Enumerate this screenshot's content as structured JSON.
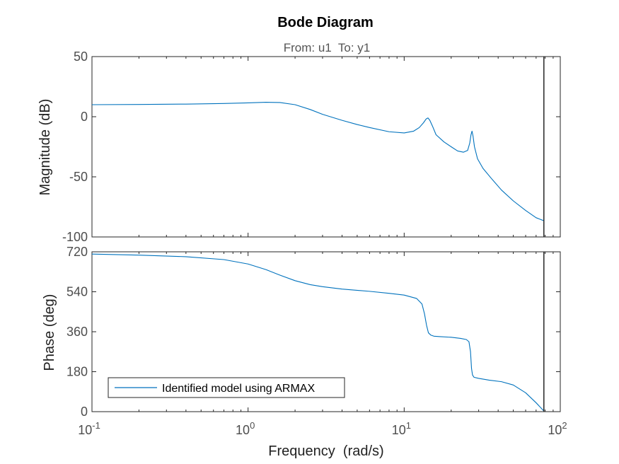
{
  "chart_data": {
    "type": "line",
    "title": "Bode Diagram",
    "subtitle": "From: u1  To: y1",
    "xlabel": "Frequency  (rad/s)",
    "xscale": "log",
    "xlim": [
      0.1,
      100
    ],
    "x_ticks": [
      {
        "value": 0.1,
        "base": "10",
        "exp": "-1"
      },
      {
        "value": 1,
        "base": "10",
        "exp": "0"
      },
      {
        "value": 10,
        "base": "10",
        "exp": "1"
      },
      {
        "value": 100,
        "base": "10",
        "exp": "2"
      }
    ],
    "nyquist_frequency": 78.5,
    "legend": {
      "label": "Identified model using ARMAX",
      "placement": "bottom-left"
    },
    "color": "#0072bd",
    "panels": [
      {
        "name": "magnitude",
        "ylabel": "Magnitude (dB)",
        "ylim": [
          -100,
          50
        ],
        "yticks": [
          50,
          0,
          -50,
          -100
        ],
        "tick_labels": [
          "50",
          "0",
          "-50",
          "-100"
        ],
        "series": [
          {
            "x": [
              0.1,
              0.2,
              0.4,
              0.7,
              1.0,
              1.3,
              1.6,
              2.0,
              2.5,
              3.0,
              4.0,
              5.0,
              6.0,
              8.0,
              10.0,
              11.5,
              12.5,
              13.3,
              13.8,
              14.2,
              14.6,
              15.2,
              16.0,
              18.0,
              20.0,
              22.0,
              24.0,
              25.5,
              26.3,
              26.8,
              27.2,
              27.6,
              28.2,
              29.5,
              32.0,
              36.0,
              42.0,
              50.0,
              60.0,
              70.0,
              78.5
            ],
            "y": [
              10,
              10.2,
              10.5,
              11,
              11.5,
              12,
              11.8,
              10,
              6,
              2,
              -3,
              -6.5,
              -9,
              -12.5,
              -13.5,
              -12,
              -9,
              -5,
              -2,
              -1,
              -3,
              -8,
              -15,
              -21,
              -25,
              -28.5,
              -29.5,
              -28,
              -22,
              -15,
              -12,
              -16,
              -25,
              -35,
              -43,
              -51,
              -61,
              -70,
              -78,
              -84,
              -86.5
            ]
          }
        ]
      },
      {
        "name": "phase",
        "ylabel": "Phase (deg)",
        "ylim": [
          0,
          720
        ],
        "yticks": [
          720,
          540,
          360,
          180,
          0
        ],
        "tick_labels": [
          "720",
          "540",
          "360",
          "180",
          "0"
        ],
        "series": [
          {
            "x": [
              0.1,
              0.2,
              0.4,
              0.7,
              1.0,
              1.3,
              1.6,
              2.0,
              2.5,
              3.0,
              4.0,
              6.0,
              8.0,
              10.0,
              12.0,
              13.0,
              13.5,
              13.9,
              14.3,
              14.8,
              15.5,
              17.0,
              20.0,
              23.0,
              25.0,
              26.0,
              26.6,
              27.0,
              27.4,
              28.0,
              30.0,
              35.0,
              42.0,
              50.0,
              60.0,
              70.0,
              78.5
            ],
            "y": [
              710,
              705,
              698,
              685,
              665,
              640,
              615,
              590,
              572,
              563,
              552,
              542,
              533,
              525,
              510,
              485,
              440,
              390,
              355,
              345,
              340,
              338,
              335,
              330,
              325,
              315,
              270,
              195,
              165,
              155,
              150,
              142,
              135,
              120,
              85,
              40,
              3
            ]
          }
        ]
      }
    ]
  }
}
